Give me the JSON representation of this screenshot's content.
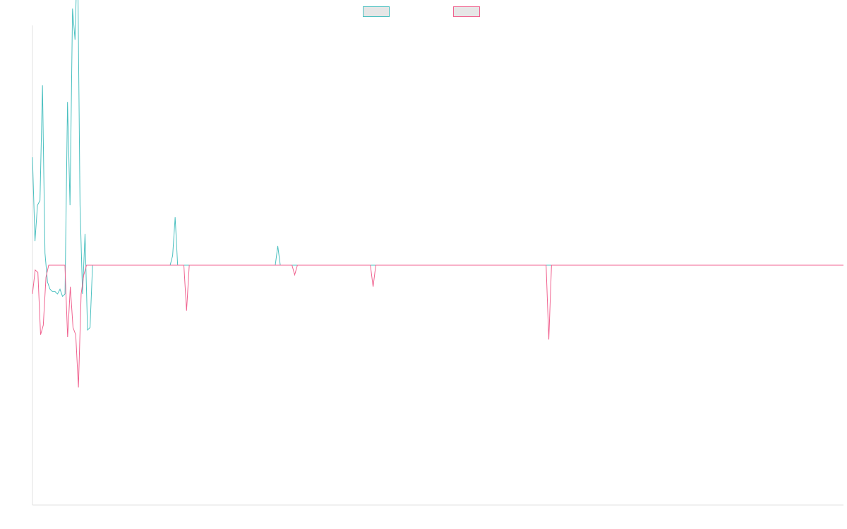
{
  "chart_data": {
    "type": "line",
    "title": "",
    "xlabel": "",
    "ylabel": "",
    "grid": false,
    "legend_position": "top-center",
    "ylim": [
      -100,
      100
    ],
    "series": [
      {
        "name": "",
        "color": "#4bc0c0",
        "values": [
          45,
          10,
          25,
          27,
          75,
          5,
          -7,
          -10,
          -11,
          -11,
          -12,
          -10,
          -13,
          -12,
          68,
          25,
          107,
          94,
          133,
          25,
          -12,
          13,
          -27,
          -26,
          0,
          0,
          0,
          0,
          0,
          0,
          0,
          0,
          0,
          0,
          0,
          0,
          0,
          0,
          0,
          0,
          0,
          0,
          0,
          0,
          0,
          0,
          0,
          0,
          0,
          0,
          0,
          0,
          0,
          0,
          0,
          0,
          4,
          20,
          0,
          0,
          0,
          0,
          0,
          0,
          0,
          0,
          0,
          0,
          0,
          0,
          0,
          0,
          0,
          0,
          0,
          0,
          0,
          0,
          0,
          0,
          0,
          0,
          0,
          0,
          0,
          0,
          0,
          0,
          0,
          0,
          0,
          0,
          0,
          0,
          0,
          0,
          0,
          0,
          8,
          0,
          0,
          0,
          0,
          0,
          0,
          0,
          0,
          0,
          0,
          0,
          0,
          0,
          0,
          0,
          0,
          0,
          0,
          0,
          0,
          0,
          0,
          0,
          0,
          0,
          0,
          0,
          0,
          0,
          0,
          0,
          0,
          0,
          0,
          0,
          0,
          0,
          0,
          0,
          0,
          0,
          0,
          0,
          0,
          0,
          0,
          0,
          0,
          0,
          0,
          0,
          0,
          0,
          0,
          0,
          0,
          0,
          0,
          0,
          0,
          0,
          0,
          0,
          0,
          0,
          0,
          0,
          0,
          0,
          0,
          0,
          0,
          0,
          0,
          0,
          0,
          0,
          0,
          0,
          0,
          0,
          0,
          0,
          0,
          0,
          0,
          0,
          0,
          0,
          0,
          0,
          0,
          0,
          0,
          0,
          0,
          0,
          0,
          0,
          0,
          0,
          0,
          0,
          0,
          0,
          0,
          0,
          0,
          0,
          0,
          0,
          0,
          0,
          0,
          0,
          0,
          0,
          0,
          0,
          0,
          0,
          0,
          0,
          0,
          0,
          0,
          0,
          0,
          0,
          0,
          0,
          0,
          0,
          0,
          0,
          0,
          0,
          0,
          0,
          0,
          0,
          0,
          0,
          0,
          0,
          0,
          0,
          0,
          0,
          0,
          0,
          0,
          0,
          0,
          0,
          0,
          0,
          0,
          0,
          0,
          0,
          0,
          0,
          0,
          0,
          0,
          0,
          0,
          0,
          0,
          0,
          0,
          0,
          0,
          0,
          0,
          0,
          0,
          0,
          0,
          0,
          0,
          0,
          0,
          0,
          0,
          0,
          0,
          0,
          0,
          0,
          0,
          0,
          0,
          0,
          0,
          0,
          0,
          0,
          0,
          0,
          0,
          0,
          0,
          0,
          0,
          0,
          0,
          0,
          0,
          0,
          0,
          0,
          0,
          0,
          0,
          0,
          0,
          0,
          0,
          0,
          0,
          0,
          0,
          0,
          0
        ]
      },
      {
        "name": "",
        "color": "#f06390",
        "values": [
          -12,
          -2,
          -3,
          -29,
          -25,
          -5,
          0,
          0,
          0,
          0,
          0,
          0,
          0,
          -30,
          -9,
          -26,
          -29,
          -51,
          -12,
          -4,
          0,
          0,
          0,
          0,
          0,
          0,
          0,
          0,
          0,
          0,
          0,
          0,
          0,
          0,
          0,
          0,
          0,
          0,
          0,
          0,
          0,
          0,
          0,
          0,
          0,
          0,
          0,
          0,
          0,
          0,
          0,
          0,
          0,
          0,
          0,
          0,
          0,
          -19,
          0,
          0,
          0,
          0,
          0,
          0,
          0,
          0,
          0,
          0,
          0,
          0,
          0,
          0,
          0,
          0,
          0,
          0,
          0,
          0,
          0,
          0,
          0,
          0,
          0,
          0,
          0,
          0,
          0,
          0,
          0,
          0,
          0,
          0,
          0,
          0,
          0,
          0,
          0,
          -4,
          0,
          0,
          0,
          0,
          0,
          0,
          0,
          0,
          0,
          0,
          0,
          0,
          0,
          0,
          0,
          0,
          0,
          0,
          0,
          0,
          0,
          0,
          0,
          0,
          0,
          0,
          0,
          0,
          -9,
          0,
          0,
          0,
          0,
          0,
          0,
          0,
          0,
          0,
          0,
          0,
          0,
          0,
          0,
          0,
          0,
          0,
          0,
          0,
          0,
          0,
          0,
          0,
          0,
          0,
          0,
          0,
          0,
          0,
          0,
          0,
          0,
          0,
          0,
          0,
          0,
          0,
          0,
          0,
          0,
          0,
          0,
          0,
          0,
          0,
          0,
          0,
          0,
          0,
          0,
          0,
          0,
          0,
          0,
          0,
          0,
          0,
          0,
          0,
          0,
          0,
          0,
          0,
          0,
          -31,
          0,
          0,
          0,
          0,
          0,
          0,
          0,
          0,
          0,
          0,
          0,
          0,
          0,
          0,
          0,
          0,
          0,
          0,
          0,
          0,
          0,
          0,
          0,
          0,
          0,
          0,
          0,
          0,
          0,
          0,
          0,
          0,
          0,
          0,
          0,
          0,
          0,
          0,
          0,
          0,
          0,
          0,
          0,
          0,
          0,
          0,
          0,
          0,
          0,
          0,
          0,
          0,
          0,
          0,
          0,
          0,
          0,
          0,
          0,
          0,
          0,
          0,
          0,
          0,
          0,
          0,
          0,
          0,
          0,
          0,
          0,
          0,
          0,
          0,
          0,
          0,
          0,
          0,
          0,
          0,
          0,
          0,
          0,
          0,
          0,
          0,
          0,
          0,
          0,
          0,
          0,
          0,
          0,
          0,
          0,
          0,
          0,
          0,
          0,
          0,
          0,
          0,
          0,
          0,
          0,
          0,
          0,
          0,
          0
        ]
      }
    ],
    "extra_spikes": {
      "note": ""
    }
  }
}
